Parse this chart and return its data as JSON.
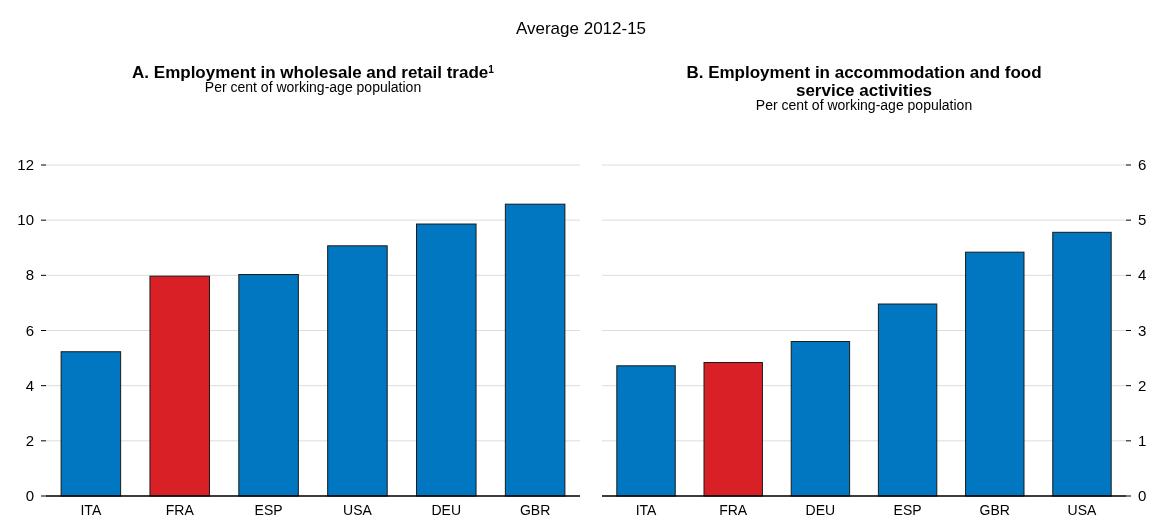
{
  "chart_data": [
    {
      "type": "bar",
      "title": "A. Employment in wholesale and retail trade$^{1}$",
      "subtitle": "Per cent of working-age population",
      "annotations": [
        "Average 2012-15"
      ],
      "categories": [
        "ITA",
        "FRA",
        "ESP",
        "USA",
        "DEU",
        "GBR"
      ],
      "series": [
        {
          "values": [
            5.23,
            7.97,
            8.03,
            9.07,
            9.86,
            10.58
          ],
          "colors": [
            "#0077c0",
            "#d92027",
            "#0077c0",
            "#0077c0",
            "#0077c0",
            "#0077c0"
          ]
        }
      ],
      "ylim": [
        0,
        12
      ],
      "yticks": [
        0,
        2,
        4,
        6,
        8,
        10,
        12
      ],
      "grid": "y"
    },
    {
      "type": "bar",
      "title": "B. Employment in accommodation and food service activities",
      "subtitle": "Per cent of working-age population",
      "categories": [
        "ITA",
        "FRA",
        "DEU",
        "ESP",
        "GBR",
        "USA"
      ],
      "series": [
        {
          "axis": "y2",
          "values": [
            2.36,
            2.42,
            2.8,
            3.48,
            4.42,
            4.78
          ],
          "colors": [
            "#0077c0",
            "#d92027",
            "#0077c0",
            "#0077c0",
            "#0077c0",
            "#0077c0"
          ]
        }
      ],
      "y2lim": [
        0,
        6
      ],
      "y2ticks": [
        0,
        1,
        2,
        3,
        4,
        5,
        6
      ],
      "grid": "y"
    }
  ]
}
